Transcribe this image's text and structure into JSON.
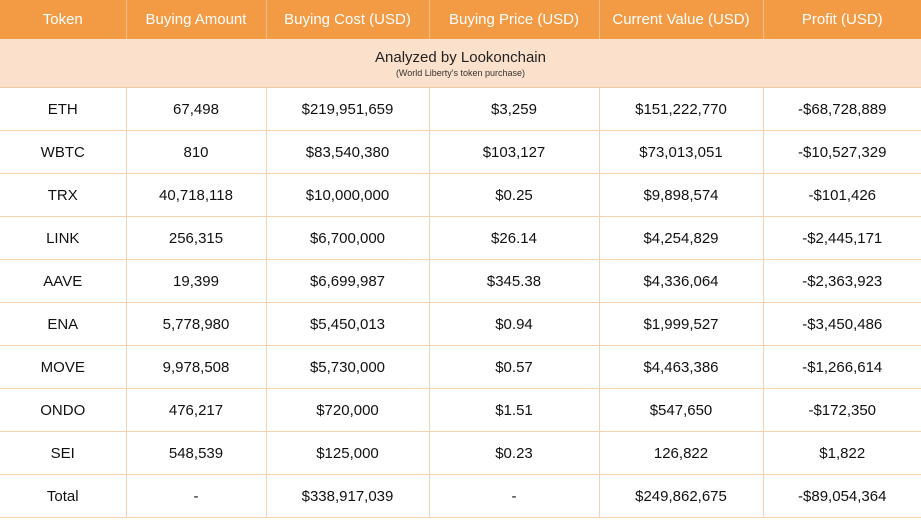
{
  "headers": [
    "Token",
    "Buying Amount",
    "Buying Cost (USD)",
    "Buying Price (USD)",
    "Current Value (USD)",
    "Profit (USD)"
  ],
  "analyzed": {
    "title": "Analyzed by Lookonchain",
    "subtitle": "(World Liberty's token purchase)"
  },
  "rows": [
    {
      "token": "ETH",
      "amount": "67,498",
      "cost": "$219,951,659",
      "price": "$3,259",
      "value": "$151,222,770",
      "profit": "-$68,728,889",
      "negative": true
    },
    {
      "token": "WBTC",
      "amount": "810",
      "cost": "$83,540,380",
      "price": "$103,127",
      "value": "$73,013,051",
      "profit": "-$10,527,329",
      "negative": true
    },
    {
      "token": "TRX",
      "amount": "40,718,118",
      "cost": "$10,000,000",
      "price": "$0.25",
      "value": "$9,898,574",
      "profit": "-$101,426",
      "negative": true
    },
    {
      "token": "LINK",
      "amount": "256,315",
      "cost": "$6,700,000",
      "price": "$26.14",
      "value": "$4,254,829",
      "profit": "-$2,445,171",
      "negative": true
    },
    {
      "token": "AAVE",
      "amount": "19,399",
      "cost": "$6,699,987",
      "price": "$345.38",
      "value": "$4,336,064",
      "profit": "-$2,363,923",
      "negative": true
    },
    {
      "token": "ENA",
      "amount": "5,778,980",
      "cost": "$5,450,013",
      "price": "$0.94",
      "value": "$1,999,527",
      "profit": "-$3,450,486",
      "negative": true
    },
    {
      "token": "MOVE",
      "amount": "9,978,508",
      "cost": "$5,730,000",
      "price": "$0.57",
      "value": "$4,463,386",
      "profit": "-$1,266,614",
      "negative": true
    },
    {
      "token": "ONDO",
      "amount": "476,217",
      "cost": "$720,000",
      "price": "$1.51",
      "value": "$547,650",
      "profit": "-$172,350",
      "negative": true
    },
    {
      "token": "SEI",
      "amount": "548,539",
      "cost": "$125,000",
      "price": "$0.23",
      "value": "126,822",
      "profit": "$1,822",
      "negative": false
    },
    {
      "token": "Total",
      "amount": "-",
      "cost": "$338,917,039",
      "price": "-",
      "value": "$249,862,675",
      "profit": "-$89,054,364",
      "negative": true
    }
  ],
  "colors": {
    "header_bg": "#f29a44",
    "analyzed_bg": "#fbe1cb",
    "negative_text": "#e8141c",
    "grid_line": "#f6d2b0"
  }
}
